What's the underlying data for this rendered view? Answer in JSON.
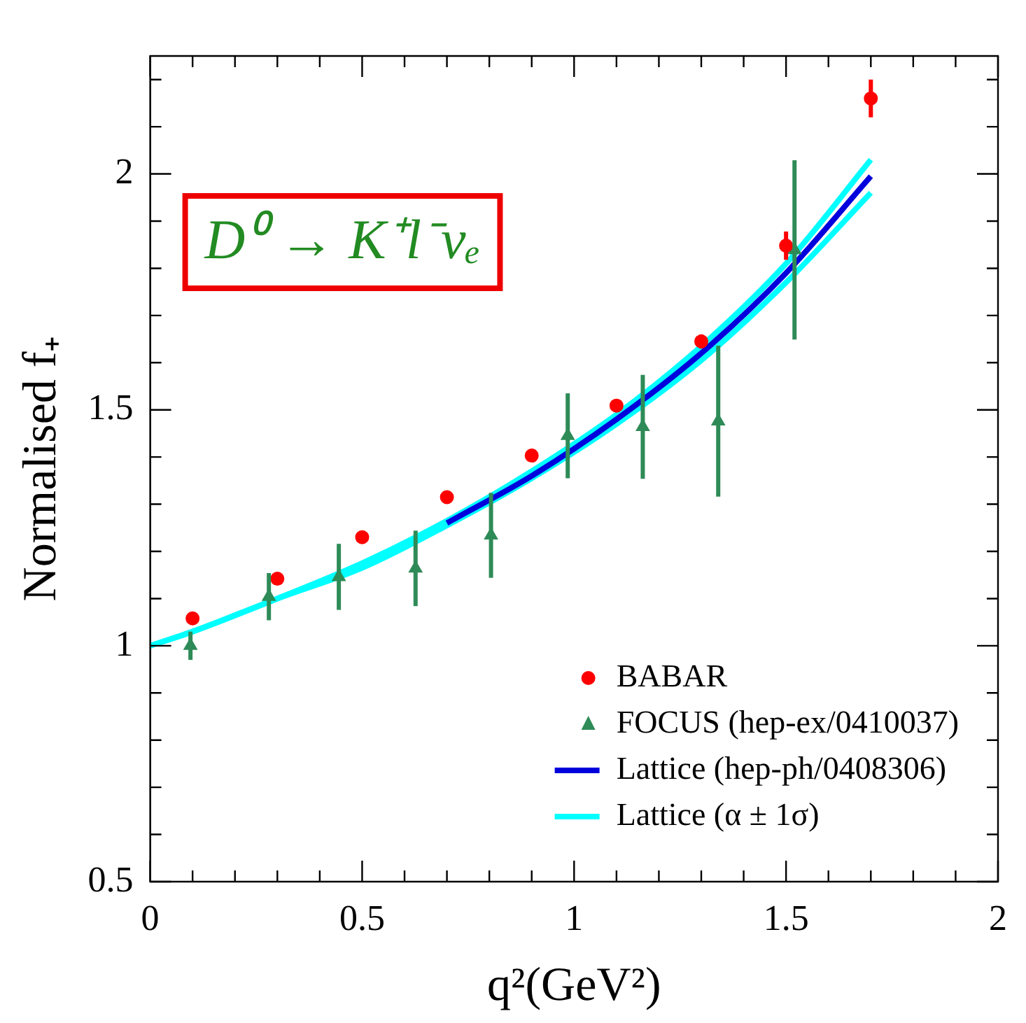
{
  "chart_data": {
    "type": "scatter",
    "xlabel": "q²(GeV²)",
    "ylabel": "Normalised f₊",
    "annotations": [
      "D⁰ → K⁺l⁻νₑ"
    ],
    "xlim": [
      0,
      2
    ],
    "ylim": [
      0.5,
      2.25
    ],
    "xticks": [
      0,
      {
        "value": 0.1,
        "label": null
      },
      {
        "value": 0.2,
        "label": null
      },
      {
        "value": 0.3,
        "label": null
      },
      {
        "value": 0.4,
        "label": null
      },
      0.5,
      {
        "value": 0.6,
        "label": null
      },
      {
        "value": 0.7,
        "label": null
      },
      {
        "value": 0.8,
        "label": null
      },
      {
        "value": 0.9,
        "label": null
      },
      1,
      {
        "value": 1.1,
        "label": null
      },
      {
        "value": 1.2,
        "label": null
      },
      {
        "value": 1.3,
        "label": null
      },
      {
        "value": 1.4,
        "label": null
      },
      1.5,
      {
        "value": 1.6,
        "label": null
      },
      {
        "value": 1.7,
        "label": null
      },
      {
        "value": 1.8,
        "label": null
      },
      {
        "value": 1.9,
        "label": null
      },
      2
    ],
    "yticks": [
      0.5,
      {
        "value": 0.6,
        "label": null
      },
      {
        "value": 0.7,
        "label": null
      },
      {
        "value": 0.8,
        "label": null
      },
      {
        "value": 0.9,
        "label": null
      },
      1,
      {
        "value": 1.1,
        "label": null
      },
      {
        "value": 1.2,
        "label": null
      },
      {
        "value": 1.3,
        "label": null
      },
      {
        "value": 1.4,
        "label": null
      },
      1.5,
      {
        "value": 1.6,
        "label": null
      },
      {
        "value": 1.7,
        "label": null
      },
      {
        "value": 1.8,
        "label": null
      },
      {
        "value": 1.9,
        "label": null
      },
      2,
      {
        "value": 2.1,
        "label": null
      },
      {
        "value": 2.2,
        "label": null
      }
    ],
    "grid": false,
    "legend": "bottom right",
    "series": [
      {
        "name": "BABAR",
        "marker": "circle",
        "color": "#ff0000",
        "x": [
          0.1,
          0.3,
          0.5,
          0.7,
          0.9,
          1.1,
          1.3,
          1.5,
          1.7
        ],
        "values": [
          1.058,
          1.142,
          1.23,
          1.315,
          1.403,
          1.509,
          1.645,
          1.848,
          2.16
        ],
        "errors": [
          null,
          null,
          null,
          null,
          null,
          null,
          0.015,
          0.03,
          0.04
        ]
      },
      {
        "name": "FOCUS (hep-ex/0410037)",
        "marker": "triangle",
        "color": "#2e8b57",
        "x": [
          0.095,
          0.28,
          0.445,
          0.626,
          0.804,
          0.985,
          1.162,
          1.34,
          1.52
        ],
        "values": [
          1.0,
          1.104,
          1.146,
          1.164,
          1.234,
          1.445,
          1.464,
          1.476,
          1.839
        ],
        "errors": [
          0.03,
          0.05,
          0.07,
          0.08,
          0.09,
          0.09,
          0.11,
          0.16,
          0.19
        ]
      },
      {
        "name": "Lattice (hep-ph/0408306)",
        "type": "line",
        "marker": "none",
        "color": "#0000dd",
        "x": [
          0.7,
          0.9,
          1.1,
          1.3,
          1.5,
          1.7
        ],
        "values": [
          1.26,
          1.36,
          1.48,
          1.62,
          1.79,
          1.995
        ]
      },
      {
        "name": "Lattice (α ± 1σ)",
        "type": "line",
        "marker": "none",
        "color": "#00ffff",
        "x": [
          0,
          0.1,
          0.3,
          0.5,
          0.7,
          0.9,
          1.1,
          1.3,
          1.5,
          1.7
        ],
        "values": [
          1,
          1.03,
          1.1,
          1.175,
          1.265,
          1.37,
          1.49,
          1.635,
          1.81,
          2.03
        ]
      },
      {
        "type": "line",
        "marker": "none",
        "color": "#00ffff",
        "x": [
          0,
          0.1,
          0.3,
          0.5,
          0.7,
          0.9,
          1.1,
          1.3,
          1.5,
          1.7
        ],
        "values": [
          1,
          1.03,
          1.1,
          1.165,
          1.255,
          1.355,
          1.47,
          1.605,
          1.77,
          1.96
        ]
      }
    ]
  }
}
